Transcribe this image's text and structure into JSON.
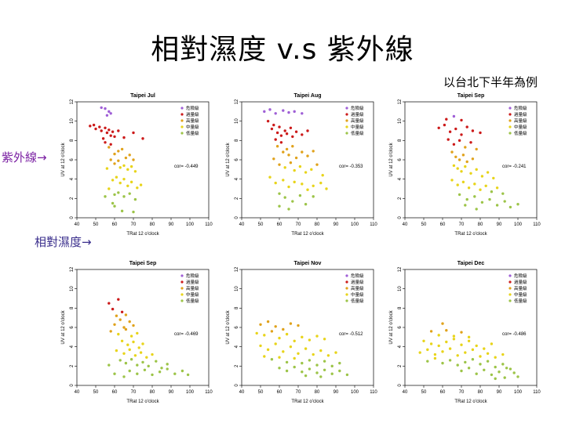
{
  "title": "相對濕度 v.s 紫外線",
  "subtitle": "以台北下半年為例",
  "side_labels": {
    "uv": "紫外線",
    "humidity": "相對濕度"
  },
  "arrow": "→",
  "colors": {
    "very_high": "#9f5fd6",
    "high": "#cc1a1a",
    "moderate": "#e0a21c",
    "low": "#e8d41a",
    "minimal": "#9cc448"
  },
  "chart_data": [
    {
      "type": "scatter",
      "title": "Taipei Jul",
      "xlabel": "TRat 12 o'clock",
      "ylabel": "UV at 12 o'clock",
      "xlim": [
        40,
        110
      ],
      "ylim": [
        0,
        12
      ],
      "xticks": [
        "40",
        "50",
        "60",
        "70",
        "80",
        "90",
        "100",
        "110"
      ],
      "yticks": [
        "0",
        "2",
        "4",
        "6",
        "8",
        "10",
        "12"
      ],
      "cor": "cor= -0.449",
      "legend": [
        "危險級",
        "過量級",
        "高量級",
        "中量級",
        "低量級"
      ],
      "points": [
        [
          55,
          11.3
        ],
        [
          57,
          11
        ],
        [
          53,
          11.4
        ],
        [
          56,
          10.6
        ],
        [
          58,
          10.8
        ],
        [
          47,
          9.5
        ],
        [
          49,
          9.6
        ],
        [
          50,
          9.2
        ],
        [
          52,
          9.4
        ],
        [
          53,
          9
        ],
        [
          55,
          9.3
        ],
        [
          56,
          8.8
        ],
        [
          57,
          9.1
        ],
        [
          58,
          8.5
        ],
        [
          59,
          8.9
        ],
        [
          60,
          8.4
        ],
        [
          62,
          9
        ],
        [
          65,
          8.3
        ],
        [
          70,
          8.8
        ],
        [
          75,
          8.2
        ],
        [
          54,
          8.2
        ],
        [
          55,
          7.8
        ],
        [
          57,
          7.3
        ],
        [
          58,
          7.6
        ],
        [
          60,
          6.6
        ],
        [
          62,
          6.9
        ],
        [
          64,
          7.1
        ],
        [
          66,
          6.2
        ],
        [
          68,
          6.5
        ],
        [
          70,
          6
        ],
        [
          58,
          6
        ],
        [
          60,
          5.6
        ],
        [
          62,
          5.9
        ],
        [
          63,
          5.2
        ],
        [
          65,
          5.4
        ],
        [
          67,
          5
        ],
        [
          69,
          5.3
        ],
        [
          71,
          4.8
        ],
        [
          56,
          5.1
        ],
        [
          59,
          3.9
        ],
        [
          61,
          4.2
        ],
        [
          63,
          3.6
        ],
        [
          65,
          4
        ],
        [
          67,
          3.3
        ],
        [
          69,
          3.7
        ],
        [
          72,
          3.1
        ],
        [
          74,
          3.4
        ],
        [
          57,
          3
        ],
        [
          60,
          2.4
        ],
        [
          62,
          2.6
        ],
        [
          65,
          2.2
        ],
        [
          68,
          2.5
        ],
        [
          71,
          1.9
        ],
        [
          60,
          1.2
        ],
        [
          64,
          0.7
        ],
        [
          70,
          0.6
        ],
        [
          55,
          2.2
        ],
        [
          59,
          1.5
        ]
      ]
    },
    {
      "type": "scatter",
      "title": "Taipei Aug",
      "xlabel": "TRat 12 o'clock",
      "ylabel": "UV at 12 o'clock",
      "xlim": [
        40,
        110
      ],
      "ylim": [
        0,
        12
      ],
      "xticks": [
        "40",
        "50",
        "60",
        "70",
        "80",
        "90",
        "100",
        "110"
      ],
      "yticks": [
        "0",
        "2",
        "4",
        "6",
        "8",
        "10",
        "12"
      ],
      "cor": "cor= -0.353",
      "legend": [
        "危險級",
        "過量級",
        "高量級",
        "中量級",
        "低量級"
      ],
      "points": [
        [
          52,
          11
        ],
        [
          55,
          11.2
        ],
        [
          58,
          10.8
        ],
        [
          62,
          11.1
        ],
        [
          65,
          10.9
        ],
        [
          68,
          11
        ],
        [
          72,
          10.8
        ],
        [
          54,
          10
        ],
        [
          56,
          9.2
        ],
        [
          57,
          9.6
        ],
        [
          59,
          8.8
        ],
        [
          60,
          9.4
        ],
        [
          61,
          8.5
        ],
        [
          63,
          9
        ],
        [
          64,
          8.7
        ],
        [
          66,
          9.3
        ],
        [
          67,
          8.4
        ],
        [
          69,
          8.9
        ],
        [
          72,
          8.6
        ],
        [
          75,
          9
        ],
        [
          58,
          8.1
        ],
        [
          59,
          7.4
        ],
        [
          61,
          7.8
        ],
        [
          62,
          6.8
        ],
        [
          64,
          7.1
        ],
        [
          65,
          6.5
        ],
        [
          67,
          7.4
        ],
        [
          69,
          6.2
        ],
        [
          72,
          6.8
        ],
        [
          75,
          6.4
        ],
        [
          78,
          6.9
        ],
        [
          57,
          6.1
        ],
        [
          60,
          5.5
        ],
        [
          63,
          5.2
        ],
        [
          66,
          5.7
        ],
        [
          68,
          4.9
        ],
        [
          71,
          5.3
        ],
        [
          74,
          4.7
        ],
        [
          77,
          5
        ],
        [
          80,
          5.5
        ],
        [
          83,
          4.4
        ],
        [
          55,
          4.2
        ],
        [
          58,
          3.6
        ],
        [
          62,
          3.9
        ],
        [
          65,
          3.2
        ],
        [
          68,
          3.7
        ],
        [
          72,
          3.5
        ],
        [
          75,
          2.9
        ],
        [
          78,
          3.3
        ],
        [
          82,
          3.6
        ],
        [
          85,
          3
        ],
        [
          60,
          2.5
        ],
        [
          63,
          2.1
        ],
        [
          67,
          1.7
        ],
        [
          71,
          2.3
        ],
        [
          74,
          1.4
        ],
        [
          60,
          1.2
        ],
        [
          65,
          0.9
        ],
        [
          78,
          2.2
        ]
      ]
    },
    {
      "type": "scatter",
      "title": "Taipei Sep",
      "xlabel": "TRat 12 o'clock",
      "ylabel": "UV at 12 o'clock",
      "xlim": [
        40,
        110
      ],
      "ylim": [
        0,
        12
      ],
      "xticks": [
        "40",
        "50",
        "60",
        "70",
        "80",
        "90",
        "100",
        "110"
      ],
      "yticks": [
        "0",
        "2",
        "4",
        "6",
        "8",
        "10",
        "12"
      ],
      "cor": "cor= -0.241",
      "legend": [
        "危險級",
        "過量級",
        "高量級",
        "中量級",
        "低量級"
      ],
      "points": [
        [
          62,
          10.2
        ],
        [
          66,
          10.5
        ],
        [
          70,
          10.1
        ],
        [
          58,
          9.3
        ],
        [
          61,
          9.6
        ],
        [
          64,
          8.9
        ],
        [
          67,
          9.2
        ],
        [
          70,
          8.6
        ],
        [
          73,
          9.4
        ],
        [
          76,
          9
        ],
        [
          80,
          8.8
        ],
        [
          63,
          8.1
        ],
        [
          66,
          7.6
        ],
        [
          69,
          8
        ],
        [
          72,
          7.3
        ],
        [
          75,
          7.8
        ],
        [
          78,
          7.1
        ],
        [
          65,
          6.8
        ],
        [
          67,
          6.3
        ],
        [
          69,
          6
        ],
        [
          71,
          6.5
        ],
        [
          73,
          5.8
        ],
        [
          76,
          6.1
        ],
        [
          66,
          5.4
        ],
        [
          68,
          5.1
        ],
        [
          70,
          4.8
        ],
        [
          72,
          5.3
        ],
        [
          75,
          4.6
        ],
        [
          78,
          5
        ],
        [
          81,
          4.3
        ],
        [
          84,
          4.7
        ],
        [
          87,
          4.1
        ],
        [
          65,
          3.9
        ],
        [
          68,
          3.4
        ],
        [
          71,
          3.7
        ],
        [
          74,
          3.1
        ],
        [
          77,
          3.5
        ],
        [
          80,
          2.9
        ],
        [
          83,
          3.3
        ],
        [
          86,
          2.7
        ],
        [
          89,
          3.1
        ],
        [
          92,
          2.5
        ],
        [
          69,
          2.4
        ],
        [
          73,
          1.9
        ],
        [
          77,
          2.2
        ],
        [
          81,
          1.6
        ],
        [
          85,
          1.9
        ],
        [
          89,
          1.3
        ],
        [
          93,
          1.7
        ],
        [
          96,
          1.1
        ],
        [
          72,
          1.3
        ],
        [
          100,
          1.4
        ],
        [
          78,
          0.9
        ]
      ]
    },
    {
      "type": "scatter",
      "title": "Taipei Sep",
      "xlabel": "TRat 12 o'clock",
      "ylabel": "UV at 12 o'clock",
      "xlim": [
        40,
        110
      ],
      "ylim": [
        0,
        12
      ],
      "xticks": [
        "40",
        "50",
        "60",
        "70",
        "80",
        "90",
        "100",
        "110"
      ],
      "yticks": [
        "0",
        "2",
        "4",
        "6",
        "8",
        "10",
        "12"
      ],
      "cor": "cor= -0.469",
      "legend": [
        "危險級",
        "過量級",
        "高量級",
        "中量級",
        "低量級"
      ],
      "points": [
        [
          57,
          8.5
        ],
        [
          62,
          8.9
        ],
        [
          59,
          7.9
        ],
        [
          64,
          7.6
        ],
        [
          61,
          7.2
        ],
        [
          66,
          7.3
        ],
        [
          63,
          6.8
        ],
        [
          68,
          6.6
        ],
        [
          60,
          6.3
        ],
        [
          65,
          6
        ],
        [
          70,
          6.2
        ],
        [
          58,
          5.6
        ],
        [
          62,
          5.3
        ],
        [
          66,
          5.8
        ],
        [
          69,
          5.1
        ],
        [
          72,
          5.4
        ],
        [
          64,
          4.6
        ],
        [
          67,
          4.2
        ],
        [
          70,
          4.5
        ],
        [
          73,
          3.9
        ],
        [
          75,
          4.3
        ],
        [
          61,
          3.6
        ],
        [
          65,
          3.3
        ],
        [
          68,
          3.7
        ],
        [
          71,
          3.1
        ],
        [
          74,
          3.4
        ],
        [
          77,
          2.9
        ],
        [
          80,
          3.2
        ],
        [
          63,
          2.6
        ],
        [
          66,
          2.3
        ],
        [
          69,
          2.7
        ],
        [
          72,
          2.1
        ],
        [
          75,
          2.4
        ],
        [
          78,
          2
        ],
        [
          82,
          2.5
        ],
        [
          85,
          1.8
        ],
        [
          88,
          2.2
        ],
        [
          68,
          1.5
        ],
        [
          72,
          1.2
        ],
        [
          76,
          1.6
        ],
        [
          80,
          1.1
        ],
        [
          84,
          1.4
        ],
        [
          88,
          1.7
        ],
        [
          92,
          1.2
        ],
        [
          96,
          1.5
        ],
        [
          99,
          1.1
        ],
        [
          60,
          1.2
        ],
        [
          57,
          2.1
        ],
        [
          65,
          0.9
        ]
      ]
    },
    {
      "type": "scatter",
      "title": "Taipei Nov",
      "xlabel": "TRat 12 o'clock",
      "ylabel": "UV at 12 o'clock",
      "xlim": [
        40,
        110
      ],
      "ylim": [
        0,
        12
      ],
      "xticks": [
        "40",
        "50",
        "60",
        "70",
        "80",
        "90",
        "100",
        "110"
      ],
      "yticks": [
        "0",
        "2",
        "4",
        "6",
        "8",
        "10",
        "12"
      ],
      "cor": "cor= -0.512",
      "legend": [
        "危險級",
        "過量級",
        "高量級",
        "中量級",
        "低量級"
      ],
      "points": [
        [
          50,
          6.3
        ],
        [
          54,
          6.6
        ],
        [
          58,
          6.1
        ],
        [
          62,
          5.8
        ],
        [
          66,
          6.4
        ],
        [
          70,
          6.2
        ],
        [
          48,
          5.4
        ],
        [
          52,
          5.2
        ],
        [
          56,
          5.6
        ],
        [
          60,
          4.9
        ],
        [
          64,
          5.3
        ],
        [
          68,
          4.6
        ],
        [
          72,
          5
        ],
        [
          76,
          4.7
        ],
        [
          80,
          5.1
        ],
        [
          84,
          4.8
        ],
        [
          50,
          4.1
        ],
        [
          54,
          3.7
        ],
        [
          58,
          4.3
        ],
        [
          62,
          3.5
        ],
        [
          66,
          4
        ],
        [
          70,
          3.3
        ],
        [
          74,
          3.8
        ],
        [
          78,
          3.2
        ],
        [
          82,
          3.6
        ],
        [
          86,
          3.1
        ],
        [
          90,
          3.4
        ],
        [
          52,
          3
        ],
        [
          56,
          2.7
        ],
        [
          60,
          2.9
        ],
        [
          64,
          2.4
        ],
        [
          68,
          2.8
        ],
        [
          72,
          2.3
        ],
        [
          76,
          2.6
        ],
        [
          80,
          2.1
        ],
        [
          84,
          2.5
        ],
        [
          88,
          2
        ],
        [
          92,
          2.3
        ],
        [
          60,
          1.8
        ],
        [
          64,
          1.5
        ],
        [
          68,
          1.9
        ],
        [
          72,
          1.4
        ],
        [
          76,
          1.7
        ],
        [
          80,
          1.3
        ],
        [
          84,
          1.6
        ],
        [
          88,
          1.2
        ],
        [
          92,
          1.5
        ],
        [
          96,
          1.1
        ],
        [
          74,
          1
        ],
        [
          82,
          0.9
        ]
      ]
    },
    {
      "type": "scatter",
      "title": "Taipei Dec",
      "xlabel": "TRat 12 o'clock",
      "ylabel": "UV at 12 o'clock",
      "xlim": [
        40,
        110
      ],
      "ylim": [
        0,
        12
      ],
      "xticks": [
        "40",
        "50",
        "60",
        "70",
        "80",
        "90",
        "100",
        "110"
      ],
      "yticks": [
        "0",
        "2",
        "4",
        "6",
        "8",
        "10",
        "12"
      ],
      "cor": "cor= -0.486",
      "legend": [
        "危險級",
        "過量級",
        "高量級",
        "中量級",
        "低量級"
      ],
      "points": [
        [
          60,
          6.4
        ],
        [
          54,
          5.6
        ],
        [
          58,
          5.2
        ],
        [
          62,
          5.7
        ],
        [
          66,
          5.1
        ],
        [
          70,
          5.5
        ],
        [
          74,
          5
        ],
        [
          50,
          4.6
        ],
        [
          54,
          4.3
        ],
        [
          58,
          4.1
        ],
        [
          62,
          4.5
        ],
        [
          66,
          4.8
        ],
        [
          70,
          4.2
        ],
        [
          74,
          4.6
        ],
        [
          78,
          4.1
        ],
        [
          82,
          3.8
        ],
        [
          86,
          4.3
        ],
        [
          48,
          3.4
        ],
        [
          52,
          3.7
        ],
        [
          56,
          3.2
        ],
        [
          60,
          3.5
        ],
        [
          64,
          3.8
        ],
        [
          68,
          3.1
        ],
        [
          72,
          3.4
        ],
        [
          76,
          3.7
        ],
        [
          80,
          3
        ],
        [
          84,
          3.3
        ],
        [
          88,
          2.9
        ],
        [
          92,
          3.2
        ],
        [
          52,
          2.5
        ],
        [
          56,
          2.8
        ],
        [
          60,
          2.3
        ],
        [
          64,
          2.6
        ],
        [
          68,
          2.1
        ],
        [
          72,
          2.4
        ],
        [
          76,
          2.7
        ],
        [
          80,
          2.2
        ],
        [
          84,
          2.5
        ],
        [
          88,
          1.9
        ],
        [
          92,
          2.2
        ],
        [
          96,
          1.7
        ],
        [
          70,
          1.5
        ],
        [
          74,
          1.8
        ],
        [
          78,
          1.2
        ],
        [
          82,
          1.6
        ],
        [
          86,
          1.1
        ],
        [
          90,
          1.4
        ],
        [
          94,
          1.8
        ],
        [
          98,
          1.3
        ],
        [
          100,
          0.9
        ],
        [
          88,
          0.7
        ],
        [
          93,
          0.8
        ]
      ]
    }
  ]
}
